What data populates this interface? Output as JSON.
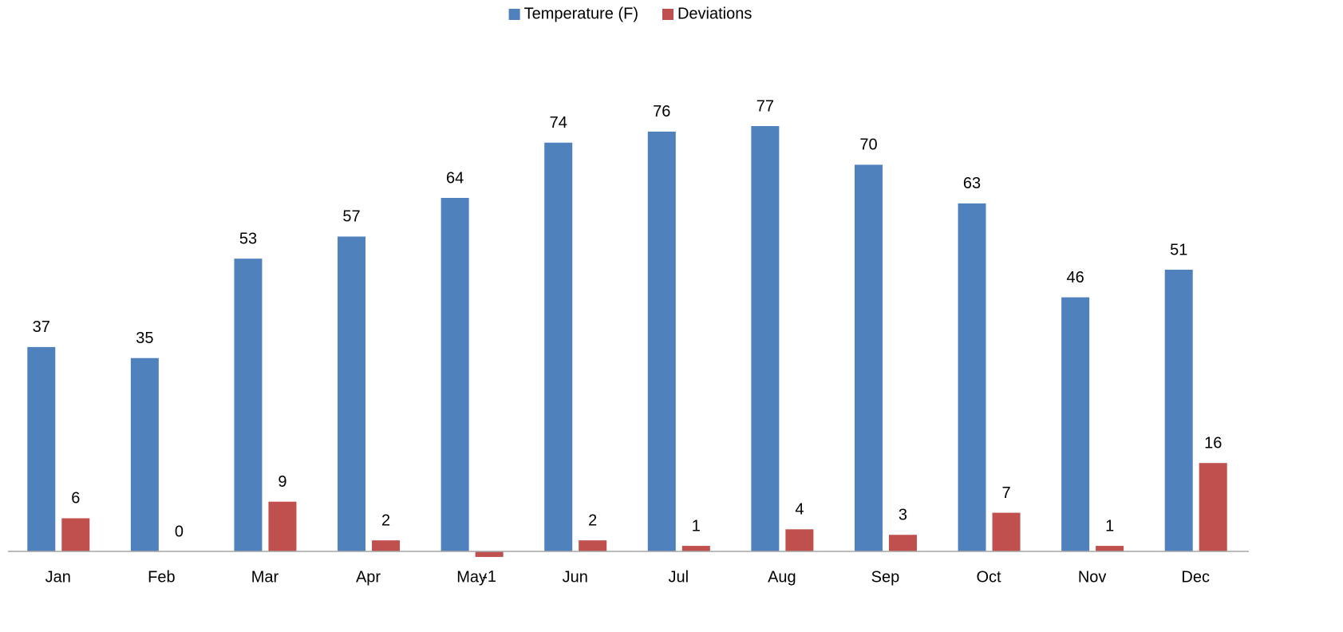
{
  "chart_data": {
    "type": "bar",
    "categories": [
      "Jan",
      "Feb",
      "Mar",
      "Apr",
      "May",
      "Jun",
      "Jul",
      "Aug",
      "Sep",
      "Oct",
      "Nov",
      "Dec"
    ],
    "series": [
      {
        "name": "Temperature (F)",
        "color": "#4f81bd",
        "values": [
          37,
          35,
          53,
          57,
          64,
          74,
          76,
          77,
          70,
          63,
          46,
          51
        ]
      },
      {
        "name": "Deviations",
        "color": "#c0504d",
        "values": [
          6,
          0,
          9,
          2,
          -1,
          2,
          1,
          4,
          3,
          7,
          1,
          16
        ]
      }
    ],
    "legend": "top",
    "data_labels": true
  }
}
